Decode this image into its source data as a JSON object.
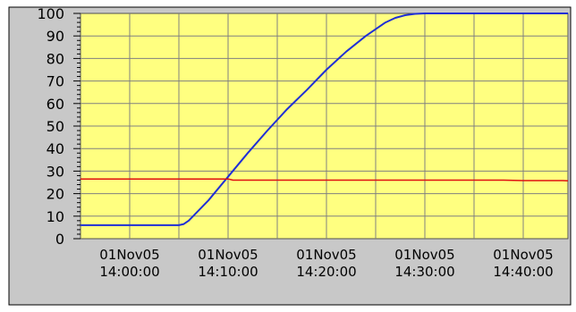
{
  "chart_data": {
    "type": "line",
    "title": "",
    "xlabel": "",
    "ylabel": "",
    "ylim": [
      0,
      100
    ],
    "y_ticks": [
      "0",
      "10",
      "20",
      "30",
      "40",
      "50",
      "60",
      "70",
      "80",
      "90",
      "100"
    ],
    "x_ticks": [
      {
        "date": "01Nov05",
        "time": "14:00:00"
      },
      {
        "date": "01Nov05",
        "time": "14:10:00"
      },
      {
        "date": "01Nov05",
        "time": "14:20:00"
      },
      {
        "date": "01Nov05",
        "time": "14:30:00"
      },
      {
        "date": "01Nov05",
        "time": "14:40:00"
      }
    ],
    "grid": true,
    "legend": "none",
    "colors": {
      "plot_background": "#ffff80",
      "frame": "#c8c8c8",
      "grid": "#808080",
      "blue_series": "#1f2fd6",
      "red_series": "#e01010"
    },
    "series": [
      {
        "color": "#1f2fd6",
        "x": [
          "13:55:00",
          "14:01:00",
          "14:05:00",
          "14:05:30",
          "14:06:00",
          "14:08:00",
          "14:10:00",
          "14:12:00",
          "14:14:00",
          "14:16:00",
          "14:18:00",
          "14:20:00",
          "14:22:00",
          "14:24:00",
          "14:26:00",
          "14:27:00",
          "14:28:00",
          "14:29:00",
          "14:30:00",
          "14:32:00",
          "14:35:00",
          "14:40:00",
          "14:45:00",
          "14:48:00"
        ],
        "values": [
          6,
          6,
          6,
          6.5,
          8,
          17,
          27.5,
          38,
          48,
          57.5,
          66,
          75,
          83,
          90,
          96,
          98,
          99.2,
          99.8,
          100,
          100,
          100,
          100,
          100,
          100
        ]
      },
      {
        "color": "#e01010",
        "x": [
          "13:55:00",
          "14:05:00",
          "14:10:00",
          "14:10:30",
          "14:20:00",
          "14:30:00",
          "14:38:00",
          "14:40:00",
          "14:44:00",
          "14:48:00"
        ],
        "values": [
          26.5,
          26.5,
          26.5,
          26,
          26,
          26,
          26,
          25.8,
          25.8,
          25.7
        ]
      }
    ]
  }
}
